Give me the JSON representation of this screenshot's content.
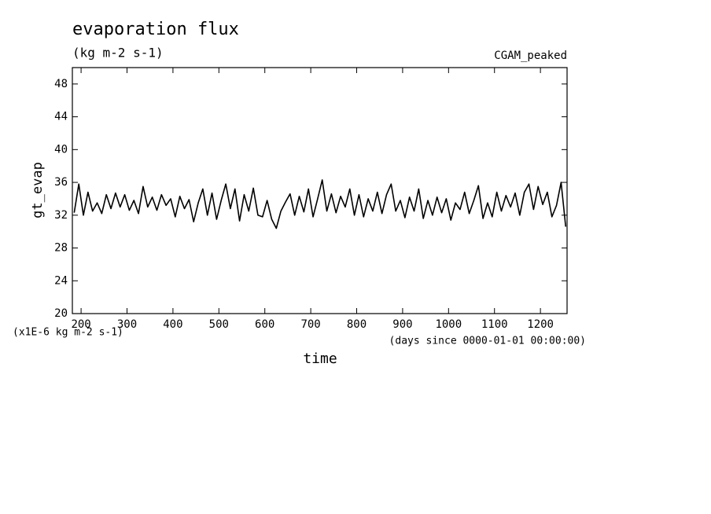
{
  "chart_data": {
    "type": "line",
    "title": "evaporation flux",
    "subtitle": "(kg m-2 s-1)",
    "annotation": "CGAM_peaked",
    "y_label": "gt_evap",
    "y_unit": "(x1E-6 kg m-2 s-1)",
    "x_label": "time",
    "x_unit": "(days since 0000-01-01 00:00:00)",
    "x": [
      185,
      195,
      205,
      215,
      225,
      235,
      245,
      255,
      265,
      275,
      285,
      295,
      305,
      315,
      325,
      335,
      345,
      355,
      365,
      375,
      385,
      395,
      405,
      415,
      425,
      435,
      445,
      455,
      465,
      475,
      485,
      495,
      505,
      515,
      525,
      535,
      545,
      555,
      565,
      575,
      585,
      595,
      605,
      615,
      625,
      635,
      645,
      655,
      665,
      675,
      685,
      695,
      705,
      715,
      725,
      735,
      745,
      755,
      765,
      775,
      785,
      795,
      805,
      815,
      825,
      835,
      845,
      855,
      865,
      875,
      885,
      895,
      905,
      915,
      925,
      935,
      945,
      955,
      965,
      975,
      985,
      995,
      1005,
      1015,
      1025,
      1035,
      1045,
      1055,
      1065,
      1075,
      1085,
      1095,
      1105,
      1115,
      1125,
      1135,
      1145,
      1155,
      1165,
      1175,
      1185,
      1195,
      1205,
      1215,
      1225,
      1235,
      1245,
      1255
    ],
    "series": [
      {
        "color": "#000000",
        "values": [
          32.3,
          35.8,
          32,
          34.8,
          32.5,
          33.5,
          32.2,
          34.5,
          32.8,
          34.7,
          33,
          34.5,
          32.6,
          33.8,
          32.2,
          35.5,
          33,
          34.2,
          32.6,
          34.5,
          33.2,
          34,
          31.8,
          34.3,
          32.8,
          33.9,
          31.2,
          33.5,
          35.2,
          32,
          34.7,
          31.5,
          33.8,
          35.8,
          32.8,
          35.2,
          31.3,
          34.5,
          32.5,
          35.3,
          32,
          31.8,
          33.8,
          31.5,
          30.4,
          32.5,
          33.6,
          34.6,
          32,
          34.3,
          32.4,
          35.2,
          31.8,
          34,
          36.3,
          32.5,
          34.6,
          32.3,
          34.3,
          33,
          35.2,
          32,
          34.5,
          31.8,
          34,
          32.5,
          34.8,
          32.2,
          34.5,
          35.8,
          32.5,
          33.8,
          31.7,
          34.2,
          32.5,
          35.2,
          31.6,
          33.8,
          32,
          34.2,
          32.3,
          34,
          31.4,
          33.5,
          32.7,
          34.8,
          32.2,
          33.8,
          35.6,
          31.6,
          33.5,
          31.8,
          34.8,
          32.5,
          34.4,
          33,
          34.7,
          32,
          34.8,
          35.8,
          32.7,
          35.5,
          33.3,
          34.8,
          31.8,
          33.2,
          36,
          30.6
        ]
      }
    ],
    "xlim": [
      181,
      1258
    ],
    "ylim": [
      20,
      50
    ],
    "xticks": [
      200,
      300,
      400,
      500,
      600,
      700,
      800,
      900,
      1000,
      1100,
      1200
    ],
    "yticks": [
      20,
      24,
      28,
      32,
      36,
      40,
      44,
      48
    ]
  }
}
